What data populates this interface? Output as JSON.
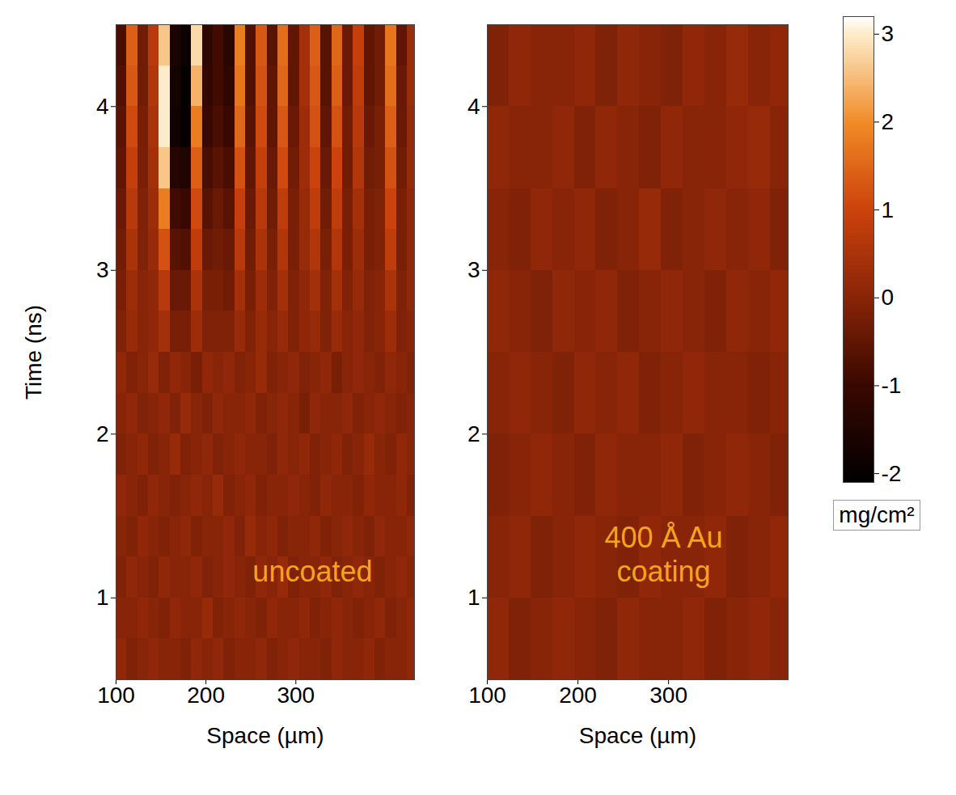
{
  "chart_data": [
    {
      "type": "heatmap",
      "annotation": "uncoated",
      "x_label": "Space (µm)",
      "y_label": "Time (ns)",
      "xlim": [
        100,
        432
      ],
      "xticks": [
        100,
        200,
        300
      ],
      "ylim": [
        0.5,
        4.5
      ],
      "yticks": [
        1,
        2,
        3,
        4
      ],
      "x_edges": [
        100,
        112,
        124,
        136,
        148,
        160,
        172,
        184,
        196,
        208,
        220,
        232,
        244,
        256,
        268,
        280,
        292,
        304,
        316,
        328,
        340,
        352,
        364,
        376,
        388,
        400,
        412,
        424,
        436
      ],
      "y_edges": [
        0.5,
        0.75,
        1,
        1.25,
        1.5,
        1.75,
        2,
        2.25,
        2.5,
        2.75,
        3,
        3.25,
        3.5,
        3.75,
        4,
        4.25,
        4.5
      ],
      "cells": [
        [
          0.1,
          -0.1,
          0.0,
          0.1,
          0.0,
          0.0,
          -0.1,
          0.1,
          0.0,
          0.1,
          -0.1,
          0.0,
          0.0,
          0.1,
          -0.1,
          0.0,
          0.1,
          0.0,
          0.0,
          -0.1,
          0.1,
          0.0,
          0.0,
          0.1,
          -0.1,
          0.0,
          0.0,
          0.1
        ],
        [
          0.0,
          0.0,
          0.1,
          0.0,
          -0.1,
          0.1,
          0.0,
          0.0,
          0.2,
          -0.1,
          0.0,
          0.1,
          0.0,
          -0.1,
          0.1,
          0.0,
          0.0,
          0.1,
          -0.1,
          0.0,
          0.1,
          0.0,
          -0.1,
          0.0,
          0.1,
          -0.1,
          0.0,
          0.1
        ],
        [
          -0.1,
          0.1,
          0.0,
          -0.1,
          0.1,
          0.0,
          0.0,
          0.1,
          -0.1,
          0.0,
          0.1,
          0.0,
          -0.1,
          0.1,
          0.0,
          0.2,
          -0.1,
          0.0,
          0.0,
          0.1,
          -0.1,
          0.0,
          0.1,
          0.0,
          -0.1,
          0.0,
          0.1,
          0.0
        ],
        [
          0.0,
          -0.1,
          0.1,
          0.0,
          -0.1,
          0.0,
          0.1,
          -0.1,
          0.0,
          0.0,
          0.1,
          -0.1,
          0.2,
          0.0,
          0.1,
          -0.1,
          0.0,
          0.0,
          0.1,
          -0.1,
          0.0,
          0.1,
          0.0,
          -0.1,
          0.1,
          0.0,
          0.0,
          0.1
        ],
        [
          0.1,
          0.0,
          -0.1,
          0.1,
          0.0,
          -0.1,
          0.0,
          0.1,
          0.0,
          0.2,
          -0.1,
          0.0,
          0.1,
          -0.1,
          0.0,
          0.0,
          0.1,
          0.0,
          -0.1,
          0.1,
          0.0,
          0.0,
          -0.1,
          0.1,
          0.0,
          0.0,
          0.1,
          -0.1
        ],
        [
          -0.1,
          0.0,
          0.1,
          -0.1,
          0.0,
          0.2,
          -0.1,
          0.0,
          0.1,
          -0.1,
          0.0,
          0.1,
          0.0,
          0.0,
          -0.1,
          0.1,
          0.0,
          0.1,
          -0.1,
          0.0,
          0.1,
          -0.1,
          0.0,
          0.2,
          0.0,
          -0.1,
          0.1,
          0.0
        ],
        [
          0.0,
          0.1,
          -0.1,
          0.0,
          0.1,
          -0.1,
          0.2,
          0.0,
          -0.1,
          0.1,
          0.0,
          0.0,
          0.1,
          -0.1,
          0.0,
          0.1,
          0.0,
          -0.2,
          0.1,
          0.0,
          0.0,
          0.1,
          -0.1,
          0.0,
          0.1,
          0.0,
          -0.1,
          0.0
        ],
        [
          0.1,
          -0.1,
          0.0,
          0.2,
          -0.1,
          0.1,
          0.0,
          -0.2,
          0.1,
          0.0,
          0.1,
          -0.1,
          0.0,
          0.2,
          -0.1,
          0.0,
          0.1,
          -0.1,
          0.0,
          0.1,
          -0.2,
          0.0,
          0.1,
          0.0,
          -0.1,
          0.1,
          0.0,
          -0.1
        ],
        [
          -0.1,
          0.2,
          0.0,
          0.1,
          0.4,
          -0.2,
          -0.2,
          0.3,
          -0.1,
          -0.1,
          -0.1,
          0.2,
          -0.1,
          0.2,
          0.0,
          0.2,
          -0.1,
          0.1,
          0.2,
          -0.1,
          0.2,
          0.0,
          0.1,
          -0.1,
          0.0,
          0.3,
          -0.1,
          0.0
        ],
        [
          -0.2,
          0.3,
          0.0,
          0.1,
          0.7,
          -0.4,
          -0.4,
          0.5,
          -0.2,
          -0.2,
          -0.3,
          0.4,
          -0.2,
          0.3,
          -0.1,
          0.4,
          -0.1,
          0.1,
          0.4,
          -0.1,
          0.4,
          -0.1,
          0.2,
          -0.1,
          0.0,
          0.5,
          -0.1,
          0.1
        ],
        [
          -0.3,
          0.5,
          -0.1,
          0.2,
          1.2,
          -0.6,
          -0.7,
          0.8,
          -0.4,
          -0.3,
          -0.4,
          0.7,
          -0.3,
          0.5,
          -0.2,
          0.6,
          -0.2,
          0.2,
          0.6,
          -0.2,
          0.6,
          -0.2,
          0.3,
          -0.2,
          -0.1,
          0.8,
          -0.2,
          0.1
        ],
        [
          -0.4,
          0.7,
          -0.1,
          0.3,
          1.8,
          -0.9,
          -1.0,
          1.1,
          -0.6,
          -0.4,
          -0.6,
          0.9,
          -0.4,
          0.7,
          -0.3,
          0.8,
          -0.2,
          0.2,
          0.8,
          -0.3,
          0.8,
          -0.2,
          0.4,
          -0.2,
          -0.1,
          1.0,
          -0.2,
          0.1
        ],
        [
          -0.5,
          0.9,
          -0.2,
          0.4,
          2.6,
          -1.4,
          -1.5,
          1.4,
          -0.8,
          -0.6,
          -0.8,
          1.2,
          -0.5,
          0.9,
          -0.4,
          1.1,
          -0.3,
          0.3,
          1.0,
          -0.4,
          1.0,
          -0.3,
          0.6,
          -0.3,
          -0.2,
          1.2,
          -0.3,
          0.2
        ],
        [
          -0.6,
          1.1,
          -0.2,
          0.5,
          3.0,
          -1.8,
          -2.0,
          1.8,
          -1.0,
          -0.8,
          -1.0,
          1.5,
          -0.6,
          1.1,
          -0.5,
          1.3,
          -0.4,
          0.3,
          1.2,
          -0.5,
          1.2,
          -0.3,
          0.7,
          -0.4,
          -0.2,
          1.4,
          -0.4,
          0.2
        ],
        [
          -0.7,
          1.3,
          -0.3,
          0.6,
          3.0,
          -1.7,
          -2.0,
          2.4,
          -1.1,
          -0.9,
          -1.2,
          1.7,
          -0.7,
          1.2,
          -0.5,
          1.5,
          -0.5,
          0.4,
          1.3,
          -0.6,
          1.4,
          -0.4,
          0.8,
          -0.5,
          -0.3,
          1.6,
          -0.4,
          0.3
        ],
        [
          -0.8,
          1.4,
          -0.3,
          0.7,
          2.6,
          -1.6,
          -1.9,
          2.8,
          -1.2,
          -0.9,
          -1.3,
          1.8,
          -0.7,
          1.3,
          -0.6,
          1.6,
          -0.5,
          0.4,
          1.4,
          -0.6,
          1.5,
          -0.4,
          0.9,
          -0.5,
          -0.3,
          1.7,
          -0.5,
          0.3
        ]
      ]
    },
    {
      "type": "heatmap",
      "annotation": "400 Å Au coating",
      "x_label": "Space (µm)",
      "xlim": [
        100,
        432
      ],
      "xticks": [
        100,
        200,
        300
      ],
      "ylim": [
        0.5,
        4.5
      ],
      "yticks": [
        1,
        2,
        3,
        4
      ],
      "x_edges": [
        100,
        124,
        148,
        172,
        196,
        220,
        244,
        268,
        292,
        316,
        340,
        364,
        388,
        412,
        436
      ],
      "y_edges": [
        0.5,
        1,
        1.5,
        2,
        2.5,
        3,
        3.5,
        4,
        4.5
      ],
      "cells": [
        [
          0.1,
          -0.1,
          0.0,
          0.1,
          0.0,
          -0.1,
          0.1,
          0.0,
          0.0,
          0.1,
          -0.1,
          0.0,
          0.1,
          0.0
        ],
        [
          0.0,
          0.1,
          -0.1,
          0.0,
          0.1,
          0.0,
          -0.1,
          0.1,
          0.0,
          0.0,
          0.1,
          -0.1,
          0.0,
          0.1
        ],
        [
          -0.1,
          0.0,
          0.1,
          0.0,
          -0.1,
          0.1,
          0.0,
          0.0,
          0.1,
          -0.1,
          0.0,
          0.1,
          0.0,
          -0.1
        ],
        [
          0.0,
          0.1,
          0.0,
          -0.1,
          0.1,
          0.0,
          0.1,
          -0.1,
          0.0,
          0.1,
          0.0,
          0.0,
          -0.1,
          0.0
        ],
        [
          0.1,
          0.0,
          -0.1,
          0.1,
          0.0,
          0.1,
          -0.1,
          0.0,
          0.1,
          0.0,
          -0.1,
          0.1,
          0.0,
          0.1
        ],
        [
          0.0,
          -0.1,
          0.1,
          0.0,
          0.1,
          -0.1,
          0.0,
          0.2,
          -0.1,
          0.0,
          0.1,
          0.0,
          0.1,
          -0.1
        ],
        [
          0.1,
          0.0,
          0.0,
          0.1,
          -0.1,
          0.1,
          0.0,
          -0.1,
          0.1,
          0.0,
          0.0,
          0.1,
          0.2,
          0.0
        ],
        [
          -0.1,
          0.1,
          0.0,
          0.0,
          0.1,
          -0.1,
          0.1,
          0.0,
          -0.1,
          0.1,
          0.0,
          0.2,
          0.0,
          0.1
        ]
      ]
    }
  ],
  "colorbar": {
    "lim": [
      -2.1,
      3.2
    ],
    "ticks": [
      -2,
      -1,
      0,
      1,
      2,
      3
    ],
    "label": "mg/cm²"
  }
}
